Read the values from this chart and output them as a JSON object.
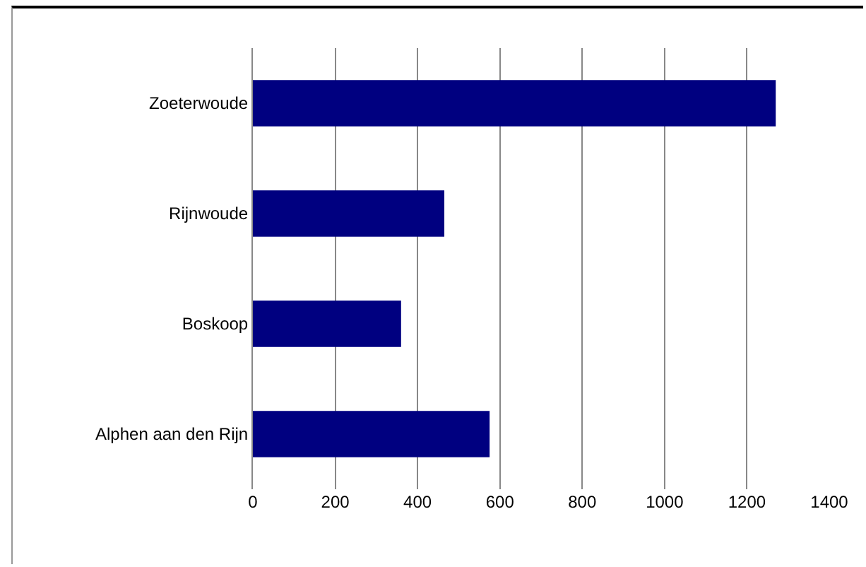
{
  "chart_data": {
    "type": "bar",
    "orientation": "horizontal",
    "categories": [
      "Zoeterwoude",
      "Rijnwoude",
      "Boskoop",
      "Alphen aan den Rijn"
    ],
    "values": [
      1270,
      465,
      360,
      575
    ],
    "color": "#000080",
    "xlim": [
      0,
      1400
    ],
    "xticks": [
      0,
      200,
      400,
      600,
      800,
      1000,
      1200,
      1400
    ],
    "grid": "x"
  }
}
